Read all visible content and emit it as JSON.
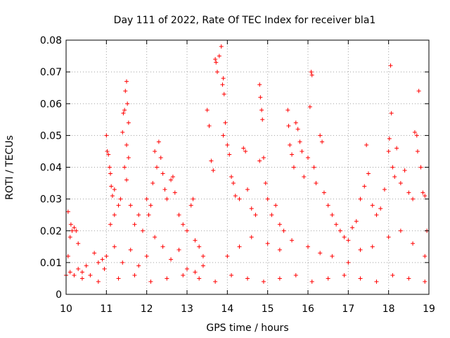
{
  "chart_data": {
    "type": "scatter",
    "title": "Day 111 of 2022, Rate Of TEC Index for receiver bla1",
    "xlabel": "GPS time / hours",
    "ylabel": "ROTI / TECUs",
    "xlim": [
      10,
      19
    ],
    "ylim": [
      0,
      0.08
    ],
    "x_ticks": [
      "10",
      "11",
      "12",
      "13",
      "14",
      "15",
      "16",
      "17",
      "18",
      "19"
    ],
    "y_ticks": [
      "0",
      "0.01",
      "0.02",
      "0.03",
      "0.04",
      "0.05",
      "0.06",
      "0.07",
      "0.08"
    ],
    "grid": true,
    "marker": "plus",
    "color": "#ff0000",
    "series": [
      {
        "points": [
          [
            10.05,
            0.012
          ],
          [
            10.05,
            0.026
          ],
          [
            10.1,
            0.018
          ],
          [
            10.12,
            0.022
          ],
          [
            10.15,
            0.02
          ],
          [
            10.2,
            0.021
          ],
          [
            10.25,
            0.02
          ],
          [
            10.3,
            0.016
          ],
          [
            10.1,
            0.007
          ],
          [
            10.2,
            0.006
          ],
          [
            10.3,
            0.008
          ],
          [
            10.4,
            0.007
          ],
          [
            10.5,
            0.009
          ],
          [
            10.6,
            0.006
          ],
          [
            10.7,
            0.013
          ],
          [
            10.8,
            0.01
          ],
          [
            10.9,
            0.011
          ],
          [
            10.95,
            0.008
          ],
          [
            11.0,
            0.05
          ],
          [
            11.02,
            0.045
          ],
          [
            11.05,
            0.044
          ],
          [
            11.08,
            0.04
          ],
          [
            11.1,
            0.038
          ],
          [
            11.12,
            0.034
          ],
          [
            11.15,
            0.031
          ],
          [
            11.2,
            0.033
          ],
          [
            11.1,
            0.022
          ],
          [
            11.2,
            0.025
          ],
          [
            11.3,
            0.028
          ],
          [
            11.35,
            0.03
          ],
          [
            11.4,
            0.051
          ],
          [
            11.42,
            0.057
          ],
          [
            11.45,
            0.058
          ],
          [
            11.47,
            0.064
          ],
          [
            11.5,
            0.067
          ],
          [
            11.52,
            0.06
          ],
          [
            11.55,
            0.054
          ],
          [
            11.5,
            0.047
          ],
          [
            11.55,
            0.043
          ],
          [
            11.45,
            0.04
          ],
          [
            11.5,
            0.036
          ],
          [
            11.6,
            0.028
          ],
          [
            11.7,
            0.022
          ],
          [
            11.8,
            0.025
          ],
          [
            11.9,
            0.02
          ],
          [
            11.0,
            0.012
          ],
          [
            11.2,
            0.015
          ],
          [
            11.4,
            0.01
          ],
          [
            11.6,
            0.014
          ],
          [
            11.8,
            0.009
          ],
          [
            12.0,
            0.03
          ],
          [
            12.05,
            0.025
          ],
          [
            12.1,
            0.028
          ],
          [
            12.15,
            0.035
          ],
          [
            12.2,
            0.045
          ],
          [
            12.25,
            0.04
          ],
          [
            12.3,
            0.048
          ],
          [
            12.35,
            0.043
          ],
          [
            12.4,
            0.038
          ],
          [
            12.45,
            0.033
          ],
          [
            12.5,
            0.03
          ],
          [
            12.6,
            0.036
          ],
          [
            12.65,
            0.037
          ],
          [
            12.7,
            0.032
          ],
          [
            12.8,
            0.025
          ],
          [
            12.9,
            0.022
          ],
          [
            12.0,
            0.012
          ],
          [
            12.2,
            0.018
          ],
          [
            12.4,
            0.015
          ],
          [
            12.6,
            0.011
          ],
          [
            12.8,
            0.014
          ],
          [
            13.0,
            0.02
          ],
          [
            13.1,
            0.028
          ],
          [
            13.15,
            0.03
          ],
          [
            13.2,
            0.017
          ],
          [
            13.3,
            0.015
          ],
          [
            13.4,
            0.012
          ],
          [
            13.0,
            0.008
          ],
          [
            13.2,
            0.007
          ],
          [
            13.4,
            0.009
          ],
          [
            13.5,
            0.058
          ],
          [
            13.55,
            0.053
          ],
          [
            13.6,
            0.042
          ],
          [
            13.65,
            0.039
          ],
          [
            13.7,
            0.074
          ],
          [
            13.72,
            0.073
          ],
          [
            13.75,
            0.07
          ],
          [
            13.8,
            0.075
          ],
          [
            13.85,
            0.078
          ],
          [
            13.88,
            0.066
          ],
          [
            13.9,
            0.068
          ],
          [
            13.92,
            0.063
          ],
          [
            13.95,
            0.054
          ],
          [
            13.9,
            0.05
          ],
          [
            14.0,
            0.047
          ],
          [
            14.05,
            0.044
          ],
          [
            14.1,
            0.037
          ],
          [
            14.15,
            0.035
          ],
          [
            14.2,
            0.031
          ],
          [
            14.3,
            0.03
          ],
          [
            14.4,
            0.046
          ],
          [
            14.45,
            0.045
          ],
          [
            14.5,
            0.033
          ],
          [
            14.6,
            0.027
          ],
          [
            14.7,
            0.025
          ],
          [
            14.8,
            0.066
          ],
          [
            14.82,
            0.062
          ],
          [
            14.85,
            0.058
          ],
          [
            14.87,
            0.055
          ],
          [
            14.8,
            0.042
          ],
          [
            14.9,
            0.043
          ],
          [
            14.95,
            0.035
          ],
          [
            15.0,
            0.03
          ],
          [
            15.1,
            0.025
          ],
          [
            15.2,
            0.028
          ],
          [
            15.3,
            0.022
          ],
          [
            15.4,
            0.02
          ],
          [
            15.5,
            0.058
          ],
          [
            15.52,
            0.053
          ],
          [
            15.55,
            0.047
          ],
          [
            15.6,
            0.044
          ],
          [
            15.65,
            0.04
          ],
          [
            15.7,
            0.054
          ],
          [
            15.75,
            0.052
          ],
          [
            15.8,
            0.048
          ],
          [
            15.85,
            0.045
          ],
          [
            15.9,
            0.037
          ],
          [
            16.0,
            0.043
          ],
          [
            16.05,
            0.059
          ],
          [
            16.08,
            0.07
          ],
          [
            16.1,
            0.069
          ],
          [
            16.15,
            0.04
          ],
          [
            16.2,
            0.035
          ],
          [
            16.3,
            0.05
          ],
          [
            16.35,
            0.048
          ],
          [
            16.4,
            0.032
          ],
          [
            16.5,
            0.028
          ],
          [
            16.6,
            0.025
          ],
          [
            16.7,
            0.022
          ],
          [
            16.8,
            0.02
          ],
          [
            16.9,
            0.018
          ],
          [
            17.0,
            0.017
          ],
          [
            17.1,
            0.021
          ],
          [
            17.2,
            0.023
          ],
          [
            17.3,
            0.03
          ],
          [
            17.4,
            0.034
          ],
          [
            17.45,
            0.047
          ],
          [
            17.5,
            0.038
          ],
          [
            17.6,
            0.028
          ],
          [
            17.7,
            0.025
          ],
          [
            17.8,
            0.027
          ],
          [
            17.9,
            0.033
          ],
          [
            18.0,
            0.045
          ],
          [
            18.02,
            0.049
          ],
          [
            18.05,
            0.072
          ],
          [
            18.07,
            0.057
          ],
          [
            18.1,
            0.04
          ],
          [
            18.15,
            0.037
          ],
          [
            18.2,
            0.046
          ],
          [
            18.3,
            0.035
          ],
          [
            18.4,
            0.039
          ],
          [
            18.5,
            0.032
          ],
          [
            18.6,
            0.03
          ],
          [
            18.65,
            0.051
          ],
          [
            18.7,
            0.05
          ],
          [
            18.72,
            0.045
          ],
          [
            18.75,
            0.064
          ],
          [
            18.8,
            0.04
          ],
          [
            18.85,
            0.032
          ],
          [
            18.9,
            0.031
          ],
          [
            18.95,
            0.02
          ],
          [
            14.0,
            0.012
          ],
          [
            14.3,
            0.015
          ],
          [
            14.6,
            0.018
          ],
          [
            15.0,
            0.016
          ],
          [
            15.3,
            0.014
          ],
          [
            15.6,
            0.017
          ],
          [
            16.0,
            0.015
          ],
          [
            16.3,
            0.013
          ],
          [
            16.6,
            0.012
          ],
          [
            17.0,
            0.01
          ],
          [
            17.3,
            0.014
          ],
          [
            17.6,
            0.015
          ],
          [
            18.0,
            0.018
          ],
          [
            18.3,
            0.02
          ],
          [
            18.6,
            0.016
          ],
          [
            18.9,
            0.012
          ],
          [
            10.0,
            0.006
          ],
          [
            10.4,
            0.005
          ],
          [
            10.8,
            0.004
          ],
          [
            11.3,
            0.005
          ],
          [
            11.7,
            0.006
          ],
          [
            12.1,
            0.004
          ],
          [
            12.5,
            0.005
          ],
          [
            12.9,
            0.006
          ],
          [
            13.3,
            0.005
          ],
          [
            13.7,
            0.004
          ],
          [
            14.1,
            0.006
          ],
          [
            14.5,
            0.005
          ],
          [
            14.9,
            0.004
          ],
          [
            15.3,
            0.005
          ],
          [
            15.7,
            0.006
          ],
          [
            16.1,
            0.004
          ],
          [
            16.5,
            0.005
          ],
          [
            16.9,
            0.006
          ],
          [
            17.3,
            0.005
          ],
          [
            17.7,
            0.004
          ],
          [
            18.1,
            0.006
          ],
          [
            18.5,
            0.005
          ],
          [
            18.9,
            0.004
          ]
        ]
      }
    ]
  }
}
